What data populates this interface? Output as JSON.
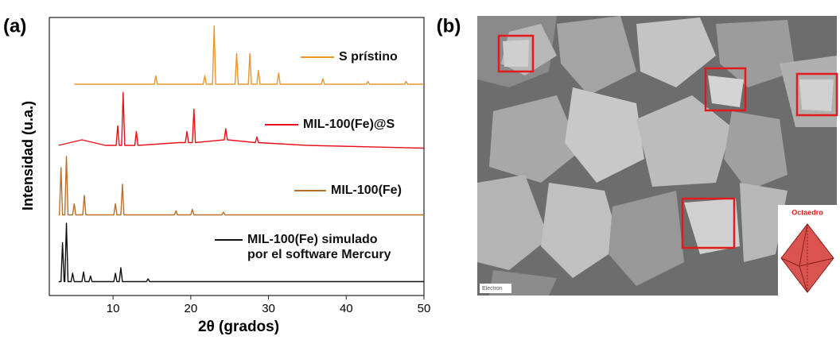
{
  "chart_data": {
    "type": "line",
    "panel_label": "(a)",
    "xlabel": "2θ (grados)",
    "ylabel": "Intensidad (u.a.)",
    "xlim": [
      1.8,
      50
    ],
    "xticks": [
      10,
      20,
      30,
      40,
      50
    ],
    "ylim": [
      0,
      100
    ],
    "series": [
      {
        "name": "S prístino",
        "color": "#e8962e",
        "x": [
          5,
          15.3,
          15.5,
          15.7,
          21.6,
          21.8,
          22.0,
          22.8,
          23.0,
          23.2,
          25.7,
          25.9,
          26.1,
          27.4,
          27.6,
          27.8,
          28.5,
          28.7,
          28.9,
          31.1,
          31.3,
          31.5,
          36.8,
          37.0,
          37.2,
          42.6,
          42.8,
          43.0,
          47.5,
          47.7,
          47.9,
          50
        ],
        "values": [
          76,
          76,
          79,
          76,
          76,
          79,
          76,
          76,
          97,
          76,
          76,
          87,
          76,
          76,
          87,
          76,
          76,
          81,
          76,
          76,
          80,
          76,
          76,
          78,
          76,
          76,
          77,
          76,
          76,
          77,
          76,
          76
        ]
      },
      {
        "name": "MIL-100(Fe)@S",
        "color": "#e8101a",
        "x": [
          3,
          6,
          9,
          10.4,
          10.6,
          10.8,
          11.1,
          11.3,
          11.5,
          12.8,
          13.0,
          13.2,
          18.5,
          19.3,
          19.5,
          19.7,
          20.2,
          20.4,
          20.6,
          24.3,
          24.5,
          24.7,
          28.3,
          28.5,
          28.7,
          35,
          50
        ],
        "values": [
          54,
          56,
          54,
          54,
          61,
          54,
          54,
          73,
          54,
          54,
          59,
          54,
          55,
          55,
          59,
          55,
          55,
          67,
          55,
          56,
          60,
          56,
          55,
          57,
          55,
          54,
          53
        ]
      },
      {
        "name": "MIL-100(Fe)",
        "color": "#b8702e",
        "x": [
          3,
          3.1,
          3.3,
          3.5,
          3.8,
          4.0,
          4.2,
          4.8,
          5.0,
          5.2,
          6.1,
          6.3,
          6.5,
          10.1,
          10.3,
          10.5,
          11.0,
          11.2,
          11.4,
          17.9,
          18.1,
          18.3,
          20.0,
          20.2,
          20.4,
          24.0,
          24.2,
          24.4,
          50
        ],
        "values": [
          29,
          29,
          46,
          29,
          29,
          50,
          29,
          29,
          33,
          29,
          29,
          36,
          29,
          29,
          33,
          29,
          29,
          40,
          29,
          29,
          30.5,
          29,
          29,
          31,
          29,
          29,
          30,
          29,
          29
        ]
      },
      {
        "name": "MIL-100(Fe) simulado por el software Mercury",
        "color": "#111111",
        "x": [
          3,
          3.3,
          3.5,
          3.7,
          3.8,
          4.0,
          4.2,
          4.6,
          4.8,
          5.0,
          6.0,
          6.2,
          6.4,
          6.9,
          7.1,
          7.3,
          10.1,
          10.3,
          10.5,
          10.8,
          11.0,
          11.2,
          14.3,
          14.5,
          14.7,
          50
        ],
        "values": [
          5,
          5,
          19,
          5,
          5,
          26,
          5,
          5,
          8,
          5,
          5,
          8.5,
          5,
          5,
          7,
          5,
          5,
          8,
          5,
          5,
          10,
          5,
          5,
          6,
          5,
          5
        ]
      }
    ]
  },
  "image": {
    "panel_label": "(b)",
    "inset_label": "Octaedro",
    "corner_text": "Electron"
  }
}
